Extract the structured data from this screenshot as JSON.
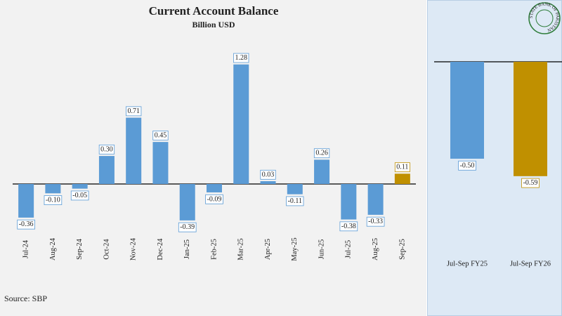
{
  "chart_data": [
    {
      "type": "bar",
      "title": "Current Account Balance",
      "subtitle": "Billion USD",
      "source": "Source: SBP",
      "categories": [
        "Jul-24",
        "Aug-24",
        "Sep-24",
        "Oct-24",
        "Nov-24",
        "Dec-24",
        "Jan-25",
        "Feb-25",
        "Mar-25",
        "Apr-25",
        "May-25",
        "Jun-25",
        "Jul-25",
        "Aug-25",
        "Sep-25"
      ],
      "values": [
        -0.36,
        -0.1,
        -0.05,
        0.3,
        0.71,
        0.45,
        -0.39,
        -0.09,
        1.28,
        0.03,
        -0.11,
        0.26,
        -0.38,
        -0.33,
        0.11
      ],
      "value_labels": [
        "-0.36",
        "-0.10",
        "-0.05",
        "0.30",
        "0.71",
        "0.45",
        "-0.39",
        "-0.09",
        "1.28",
        "0.03",
        "-0.11",
        "0.26",
        "-0.38",
        "-0.33",
        "0.11"
      ],
      "colors": [
        "#5b9bd5",
        "#5b9bd5",
        "#5b9bd5",
        "#5b9bd5",
        "#5b9bd5",
        "#5b9bd5",
        "#5b9bd5",
        "#5b9bd5",
        "#5b9bd5",
        "#5b9bd5",
        "#5b9bd5",
        "#5b9bd5",
        "#5b9bd5",
        "#5b9bd5",
        "#c09000"
      ]
    },
    {
      "type": "bar",
      "logo_text": "STATE BANK OF PAKISTAN",
      "categories": [
        "Jul-Sep FY25",
        "Jul-Sep FY26"
      ],
      "values": [
        -0.5,
        -0.59
      ],
      "value_labels": [
        "-0.50",
        "-0.59"
      ],
      "colors": [
        "#5b9bd5",
        "#c09000"
      ]
    }
  ]
}
